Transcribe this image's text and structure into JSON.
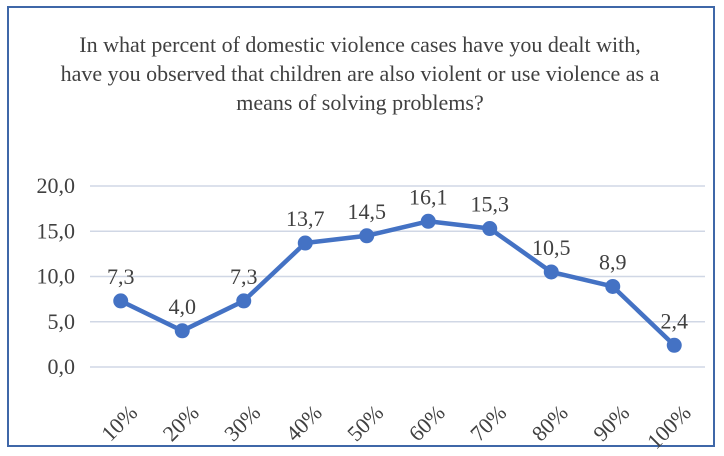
{
  "chart_data": {
    "type": "line",
    "title": "In what percent of domestic violence cases have you dealt with, have you observed that children are also violent or use violence as a means of solving problems?",
    "categories": [
      "10%",
      "20%",
      "30%",
      "40%",
      "50%",
      "60%",
      "70%",
      "80%",
      "90%",
      "100%"
    ],
    "values": [
      7.3,
      4.0,
      7.3,
      13.7,
      14.5,
      16.1,
      15.3,
      10.5,
      8.9,
      2.4
    ],
    "data_labels": [
      "7,3",
      "4,0",
      "7,3",
      "13,7",
      "14,5",
      "16,1",
      "15,3",
      "10,5",
      "8,9",
      "2,4"
    ],
    "ylim": [
      0,
      20
    ],
    "yticks": [
      0,
      5,
      10,
      15,
      20
    ],
    "ytick_labels": [
      "0,0",
      "5,0",
      "10,0",
      "15,0",
      "20,0"
    ],
    "grid": true,
    "legend": "none",
    "colors": {
      "line": "#4472c4",
      "grid": "#d0d7e5",
      "text": "#404040",
      "border": "#3f67a8"
    }
  }
}
